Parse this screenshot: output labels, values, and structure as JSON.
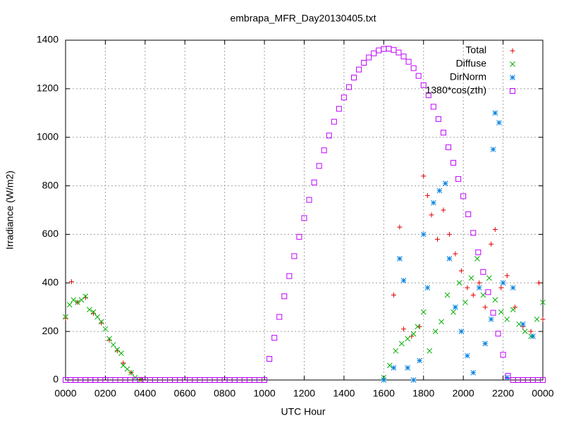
{
  "chart_data": {
    "type": "scatter",
    "title": "embrapa_MFR_Day20130405.txt",
    "xlabel": "UTC Hour",
    "ylabel": "Irradiance (W/m2)",
    "xlim": [
      0,
      24
    ],
    "ylim": [
      0,
      1400
    ],
    "xticks": [
      {
        "value": 0,
        "label": "0000"
      },
      {
        "value": 2,
        "label": "0200"
      },
      {
        "value": 4,
        "label": "0400"
      },
      {
        "value": 6,
        "label": "0600"
      },
      {
        "value": 8,
        "label": "0800"
      },
      {
        "value": 10,
        "label": "1000"
      },
      {
        "value": 12,
        "label": "1200"
      },
      {
        "value": 14,
        "label": "1400"
      },
      {
        "value": 16,
        "label": "1600"
      },
      {
        "value": 18,
        "label": "1800"
      },
      {
        "value": 20,
        "label": "2000"
      },
      {
        "value": 22,
        "label": "2200"
      },
      {
        "value": 24,
        "label": "0000"
      }
    ],
    "yticks": [
      0,
      200,
      400,
      600,
      800,
      1000,
      1200,
      1400
    ],
    "grid": true,
    "legend": "top-right",
    "series": [
      {
        "name": "Total",
        "color": "#e00000",
        "marker": "plus",
        "x": [
          0,
          0.3,
          0.6,
          1.0,
          1.4,
          1.8,
          2.2,
          2.6,
          2.9,
          3.3,
          3.8,
          16.5,
          16.8,
          17.0,
          17.4,
          17.8,
          18.0,
          18.2,
          18.4,
          18.7,
          19.0,
          19.3,
          19.6,
          19.9,
          20.2,
          20.5,
          20.8,
          21.1,
          21.4,
          21.6,
          21.9,
          22.2,
          22.6,
          23.0,
          23.4,
          23.8,
          24
        ],
        "values": [
          255,
          405,
          320,
          340,
          275,
          235,
          165,
          120,
          70,
          30,
          3,
          350,
          630,
          210,
          180,
          220,
          840,
          760,
          680,
          580,
          700,
          600,
          520,
          450,
          380,
          350,
          400,
          300,
          560,
          620,
          380,
          430,
          300,
          220,
          200,
          400,
          250
        ]
      },
      {
        "name": "Diffuse",
        "color": "#00b000",
        "marker": "cross",
        "x": [
          0,
          0.2,
          0.4,
          0.6,
          0.8,
          1.0,
          1.2,
          1.4,
          1.6,
          1.8,
          2.0,
          2.2,
          2.4,
          2.6,
          2.8,
          2.9,
          3.1,
          3.3,
          3.5,
          3.8,
          16.0,
          16.3,
          16.6,
          16.9,
          17.2,
          17.5,
          17.7,
          18.0,
          18.3,
          18.6,
          18.9,
          19.2,
          19.5,
          19.8,
          20.1,
          20.4,
          20.7,
          21.0,
          21.3,
          21.6,
          21.9,
          22.2,
          22.5,
          22.8,
          23.1,
          23.4,
          23.7,
          24
        ],
        "values": [
          260,
          310,
          330,
          320,
          330,
          345,
          290,
          280,
          260,
          240,
          210,
          170,
          145,
          125,
          110,
          60,
          45,
          30,
          10,
          2,
          10,
          60,
          120,
          150,
          170,
          190,
          220,
          280,
          120,
          200,
          240,
          350,
          280,
          400,
          320,
          420,
          500,
          350,
          420,
          330,
          280,
          250,
          290,
          230,
          200,
          180,
          250,
          320
        ]
      },
      {
        "name": "DirNorm",
        "color": "#0080e0",
        "marker": "star",
        "x": [
          16.0,
          16.5,
          16.8,
          17.0,
          17.2,
          17.5,
          17.8,
          18.0,
          18.2,
          18.5,
          18.8,
          19.1,
          19.3,
          19.6,
          19.9,
          20.2,
          20.5,
          20.8,
          21.1,
          21.4,
          21.5,
          21.6,
          21.8,
          22.0,
          22.2,
          22.5,
          23.0,
          23.5
        ],
        "values": [
          0,
          50,
          500,
          410,
          50,
          0,
          80,
          600,
          380,
          730,
          780,
          810,
          500,
          300,
          200,
          100,
          30,
          380,
          150,
          250,
          950,
          1100,
          1060,
          400,
          10,
          380,
          230,
          180
        ]
      },
      {
        "name": "1380*cos(zth)",
        "color": "#c000ff",
        "marker": "square",
        "x": [
          0,
          0.25,
          0.5,
          0.75,
          1,
          1.25,
          1.5,
          1.75,
          2,
          2.25,
          2.5,
          2.75,
          3,
          3.25,
          3.5,
          3.75,
          4,
          4.25,
          4.5,
          4.75,
          5,
          5.25,
          5.5,
          5.75,
          6,
          6.25,
          6.5,
          6.75,
          7,
          7.25,
          7.5,
          7.75,
          8,
          8.25,
          8.5,
          8.75,
          9,
          9.25,
          9.5,
          9.75,
          10,
          10.25,
          10.5,
          10.75,
          11,
          11.25,
          11.5,
          11.75,
          12,
          12.25,
          12.5,
          12.75,
          13,
          13.25,
          13.5,
          13.75,
          14,
          14.25,
          14.5,
          14.75,
          15,
          15.25,
          15.5,
          15.75,
          16,
          16.25,
          16.5,
          16.75,
          17,
          17.25,
          17.5,
          17.75,
          18,
          18.25,
          18.5,
          18.75,
          19,
          19.25,
          19.5,
          19.75,
          20,
          20.25,
          20.5,
          20.75,
          21,
          21.25,
          21.5,
          21.75,
          22,
          22.25,
          22.5,
          22.75,
          23,
          23.25,
          23.5,
          23.75,
          24
        ],
        "values": [
          0,
          0,
          0,
          0,
          0,
          0,
          0,
          0,
          0,
          0,
          0,
          0,
          0,
          0,
          0,
          0,
          0,
          0,
          0,
          0,
          0,
          0,
          0,
          0,
          0,
          0,
          0,
          0,
          0,
          0,
          0,
          0,
          0,
          0,
          0,
          0,
          0,
          0,
          0,
          0,
          0,
          87,
          174,
          260,
          345,
          428,
          510,
          590,
          667,
          742,
          814,
          882,
          946,
          1007,
          1064,
          1117,
          1164,
          1207,
          1246,
          1279,
          1307,
          1329,
          1346,
          1358,
          1364,
          1365,
          1360,
          1349,
          1333,
          1311,
          1285,
          1253,
          1215,
          1173,
          1126,
          1075,
          1019,
          959,
          895,
          828,
          757,
          683,
          606,
          526,
          445,
          362,
          277,
          191,
          104,
          17,
          0,
          0,
          0,
          0,
          0,
          0,
          0
        ]
      }
    ]
  }
}
